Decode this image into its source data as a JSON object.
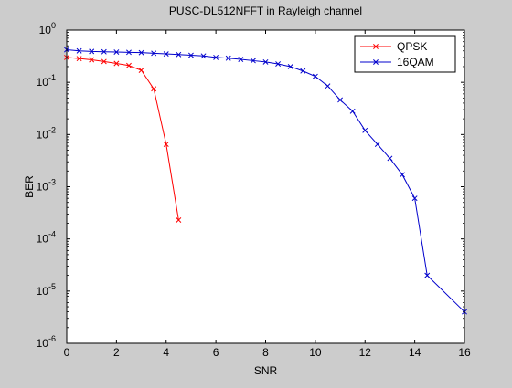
{
  "chart_data": {
    "type": "line",
    "title": "PUSC-DL512NFFT in Rayleigh channel",
    "xlabel": "SNR",
    "ylabel": "BER",
    "xlim": [
      0,
      16
    ],
    "ylim": [
      1e-06,
      1
    ],
    "yscale": "log",
    "grid": false,
    "legend_position": "top-right",
    "x_ticks": [
      0,
      2,
      4,
      6,
      8,
      10,
      12,
      14,
      16
    ],
    "y_tick_exponents": [
      -6,
      -5,
      -4,
      -3,
      -2,
      -1,
      0
    ],
    "y_tick_base": "10",
    "series": [
      {
        "name": "QPSK",
        "color": "#ff0000",
        "marker": "x",
        "x": [
          0,
          0.5,
          1,
          1.5,
          2,
          2.5,
          3,
          3.5,
          4,
          4.5
        ],
        "y": [
          0.3,
          0.285,
          0.27,
          0.25,
          0.23,
          0.21,
          0.17,
          0.075,
          0.0065,
          0.00023
        ]
      },
      {
        "name": "16QAM",
        "color": "#0000cc",
        "marker": "x",
        "x": [
          0,
          0.5,
          1,
          1.5,
          2,
          2.5,
          3,
          3.5,
          4,
          4.5,
          5,
          5.5,
          6,
          6.5,
          7,
          7.5,
          8,
          8.5,
          9,
          9.5,
          10,
          10.5,
          11,
          11.5,
          12,
          12.5,
          13,
          13.5,
          14,
          14.5,
          16
        ],
        "y": [
          0.42,
          0.4,
          0.39,
          0.385,
          0.38,
          0.375,
          0.37,
          0.36,
          0.35,
          0.34,
          0.33,
          0.32,
          0.3,
          0.29,
          0.275,
          0.26,
          0.245,
          0.225,
          0.2,
          0.165,
          0.13,
          0.085,
          0.046,
          0.028,
          0.012,
          0.0065,
          0.0035,
          0.0017,
          0.0006,
          2e-05,
          4e-06
        ]
      }
    ]
  }
}
